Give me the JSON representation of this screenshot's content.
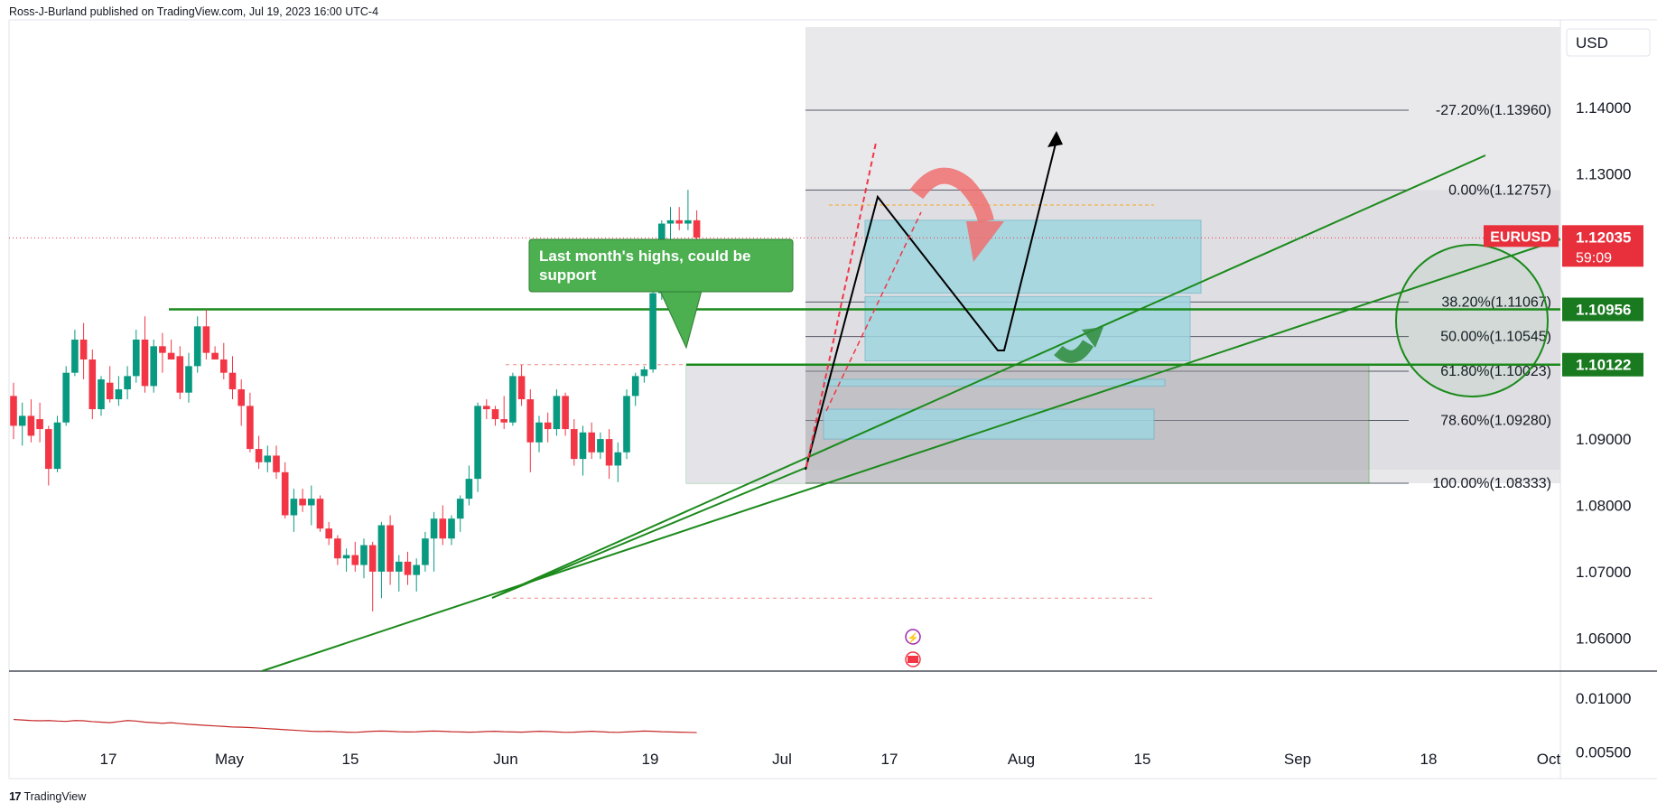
{
  "publisher_line": "Ross-J-Burland published on TradingView.com, Jul 19, 2023 16:00 UTC-4",
  "footer": {
    "logo": "17",
    "brand": "TradingView"
  },
  "currency": "USD",
  "symbol_label": {
    "symbol": "EURUSD",
    "price": "1.12035",
    "countdown": "59:09"
  },
  "colors": {
    "up": "#089981",
    "down": "#f23645",
    "green_line": "#1b8a1b",
    "tag_green": "#197a1f",
    "tag_red": "#e8303c",
    "zone": "#9fd6e0"
  },
  "badges": [
    "1.10956",
    "1.10122"
  ],
  "callout": "Last month's highs, could be support",
  "chart_data": {
    "type": "candlestick",
    "title": "",
    "symbol": "EURUSD",
    "timeframe": "1D",
    "x_tick_labels": [
      "17",
      "May",
      "15",
      "Jun",
      "19",
      "Jul",
      "17",
      "Aug",
      "15",
      "Sep",
      "18",
      "Oct"
    ],
    "price_axis_ticks": [
      "1.14000",
      "1.13000",
      "1.09000",
      "1.08000",
      "1.07000",
      "1.06000"
    ],
    "price_ylim": [
      1.055,
      1.152
    ],
    "current_price": 1.12035,
    "candles": [
      {
        "o": 1.0965,
        "h": 1.0985,
        "l": 1.09,
        "c": 1.092
      },
      {
        "o": 1.092,
        "h": 1.0955,
        "l": 1.089,
        "c": 1.0935
      },
      {
        "o": 1.0935,
        "h": 1.096,
        "l": 1.0895,
        "c": 1.0905
      },
      {
        "o": 1.093,
        "h": 1.0955,
        "l": 1.0895,
        "c": 1.0915
      },
      {
        "o": 1.0915,
        "h": 1.092,
        "l": 1.083,
        "c": 1.0855
      },
      {
        "o": 1.0855,
        "h": 1.0935,
        "l": 1.085,
        "c": 1.0925
      },
      {
        "o": 1.0925,
        "h": 1.101,
        "l": 1.092,
        "c": 1.1
      },
      {
        "o": 1.1,
        "h": 1.1065,
        "l": 1.0995,
        "c": 1.105
      },
      {
        "o": 1.105,
        "h": 1.1075,
        "l": 1.099,
        "c": 1.102
      },
      {
        "o": 1.102,
        "h": 1.1035,
        "l": 1.093,
        "c": 1.0945
      },
      {
        "o": 1.0945,
        "h": 1.0995,
        "l": 1.0935,
        "c": 1.099
      },
      {
        "o": 1.0985,
        "h": 1.101,
        "l": 1.0955,
        "c": 1.096
      },
      {
        "o": 1.096,
        "h": 1.0995,
        "l": 1.095,
        "c": 1.0975
      },
      {
        "o": 1.0975,
        "h": 1.101,
        "l": 1.096,
        "c": 1.0995
      },
      {
        "o": 1.0995,
        "h": 1.1065,
        "l": 1.0985,
        "c": 1.105
      },
      {
        "o": 1.105,
        "h": 1.1085,
        "l": 1.097,
        "c": 1.098
      },
      {
        "o": 1.098,
        "h": 1.105,
        "l": 1.097,
        "c": 1.104
      },
      {
        "o": 1.104,
        "h": 1.106,
        "l": 1.1,
        "c": 1.103
      },
      {
        "o": 1.103,
        "h": 1.105,
        "l": 1.102,
        "c": 1.102
      },
      {
        "o": 1.1025,
        "h": 1.104,
        "l": 1.096,
        "c": 1.097
      },
      {
        "o": 1.097,
        "h": 1.103,
        "l": 1.0955,
        "c": 1.101
      },
      {
        "o": 1.101,
        "h": 1.1085,
        "l": 1.1,
        "c": 1.107
      },
      {
        "o": 1.107,
        "h": 1.1095,
        "l": 1.102,
        "c": 1.103
      },
      {
        "o": 1.103,
        "h": 1.104,
        "l": 1.102,
        "c": 1.102
      },
      {
        "o": 1.102,
        "h": 1.1045,
        "l": 1.099,
        "c": 1.1
      },
      {
        "o": 1.1,
        "h": 1.1025,
        "l": 1.096,
        "c": 1.0975
      },
      {
        "o": 1.0975,
        "h": 1.099,
        "l": 1.092,
        "c": 1.095
      },
      {
        "o": 1.095,
        "h": 1.097,
        "l": 1.088,
        "c": 1.0885
      },
      {
        "o": 1.0885,
        "h": 1.0905,
        "l": 1.0855,
        "c": 1.0865
      },
      {
        "o": 1.0865,
        "h": 1.089,
        "l": 1.085,
        "c": 1.0875
      },
      {
        "o": 1.0875,
        "h": 1.089,
        "l": 1.084,
        "c": 1.085
      },
      {
        "o": 1.085,
        "h": 1.0865,
        "l": 1.078,
        "c": 1.0785
      },
      {
        "o": 1.0785,
        "h": 1.0825,
        "l": 1.076,
        "c": 1.081
      },
      {
        "o": 1.081,
        "h": 1.0825,
        "l": 1.079,
        "c": 1.08
      },
      {
        "o": 1.08,
        "h": 1.083,
        "l": 1.077,
        "c": 1.081
      },
      {
        "o": 1.081,
        "h": 1.0815,
        "l": 1.076,
        "c": 1.0765
      },
      {
        "o": 1.0765,
        "h": 1.0775,
        "l": 1.074,
        "c": 1.075
      },
      {
        "o": 1.075,
        "h": 1.0755,
        "l": 1.071,
        "c": 1.072
      },
      {
        "o": 1.072,
        "h": 1.0735,
        "l": 1.07,
        "c": 1.0725
      },
      {
        "o": 1.0725,
        "h": 1.0745,
        "l": 1.07,
        "c": 1.071
      },
      {
        "o": 1.071,
        "h": 1.075,
        "l": 1.069,
        "c": 1.074
      },
      {
        "o": 1.074,
        "h": 1.0745,
        "l": 1.064,
        "c": 1.07
      },
      {
        "o": 1.07,
        "h": 1.0775,
        "l": 1.066,
        "c": 1.077
      },
      {
        "o": 1.077,
        "h": 1.0785,
        "l": 1.068,
        "c": 1.07
      },
      {
        "o": 1.07,
        "h": 1.0725,
        "l": 1.067,
        "c": 1.0715
      },
      {
        "o": 1.0715,
        "h": 1.073,
        "l": 1.068,
        "c": 1.0695
      },
      {
        "o": 1.0695,
        "h": 1.072,
        "l": 1.067,
        "c": 1.071
      },
      {
        "o": 1.071,
        "h": 1.076,
        "l": 1.07,
        "c": 1.075
      },
      {
        "o": 1.075,
        "h": 1.079,
        "l": 1.07,
        "c": 1.078
      },
      {
        "o": 1.078,
        "h": 1.08,
        "l": 1.074,
        "c": 1.075
      },
      {
        "o": 1.075,
        "h": 1.0785,
        "l": 1.074,
        "c": 1.078
      },
      {
        "o": 1.078,
        "h": 1.0815,
        "l": 1.076,
        "c": 1.081
      },
      {
        "o": 1.081,
        "h": 1.086,
        "l": 1.08,
        "c": 1.084
      },
      {
        "o": 1.084,
        "h": 1.0955,
        "l": 1.082,
        "c": 1.095
      },
      {
        "o": 1.095,
        "h": 1.096,
        "l": 1.093,
        "c": 1.0945
      },
      {
        "o": 1.0945,
        "h": 1.095,
        "l": 1.092,
        "c": 1.093
      },
      {
        "o": 1.093,
        "h": 1.0965,
        "l": 1.0915,
        "c": 1.0925
      },
      {
        "o": 1.0925,
        "h": 1.1,
        "l": 1.092,
        "c": 1.0995
      },
      {
        "o": 1.0995,
        "h": 1.1012,
        "l": 1.095,
        "c": 1.096
      },
      {
        "o": 1.096,
        "h": 1.0975,
        "l": 1.085,
        "c": 1.0895
      },
      {
        "o": 1.0895,
        "h": 1.0935,
        "l": 1.088,
        "c": 1.0925
      },
      {
        "o": 1.0925,
        "h": 1.094,
        "l": 1.0895,
        "c": 1.0915
      },
      {
        "o": 1.0915,
        "h": 1.0975,
        "l": 1.0905,
        "c": 1.0965
      },
      {
        "o": 1.0965,
        "h": 1.097,
        "l": 1.0905,
        "c": 1.0915
      },
      {
        "o": 1.0915,
        "h": 1.093,
        "l": 1.086,
        "c": 1.087
      },
      {
        "o": 1.087,
        "h": 1.092,
        "l": 1.0845,
        "c": 1.091
      },
      {
        "o": 1.091,
        "h": 1.0925,
        "l": 1.087,
        "c": 1.088
      },
      {
        "o": 1.088,
        "h": 1.091,
        "l": 1.087,
        "c": 1.09
      },
      {
        "o": 1.09,
        "h": 1.0915,
        "l": 1.084,
        "c": 1.086
      },
      {
        "o": 1.086,
        "h": 1.0895,
        "l": 1.0835,
        "c": 1.088
      },
      {
        "o": 1.088,
        "h": 1.0975,
        "l": 1.087,
        "c": 1.0965
      },
      {
        "o": 1.0965,
        "h": 1.1,
        "l": 1.095,
        "c": 1.0995
      },
      {
        "o": 1.0995,
        "h": 1.101,
        "l": 1.0985,
        "c": 1.1005
      },
      {
        "o": 1.1005,
        "h": 1.113,
        "l": 1.1,
        "c": 1.112
      },
      {
        "o": 1.112,
        "h": 1.123,
        "l": 1.111,
        "c": 1.1225
      },
      {
        "o": 1.1225,
        "h": 1.125,
        "l": 1.12,
        "c": 1.123
      },
      {
        "o": 1.123,
        "h": 1.125,
        "l": 1.1215,
        "c": 1.1225
      },
      {
        "o": 1.1225,
        "h": 1.1276,
        "l": 1.1215,
        "c": 1.123
      },
      {
        "o": 1.123,
        "h": 1.1245,
        "l": 1.119,
        "c": 1.1204
      }
    ],
    "fibonacci": [
      {
        "ratio": "-27.20%",
        "price": 1.1396,
        "label": "-27.20%(1.13960)"
      },
      {
        "ratio": "0.00%",
        "price": 1.12757,
        "label": "0.00%(1.12757)"
      },
      {
        "ratio": "38.20%",
        "price": 1.11067,
        "label": "38.20%(1.11067)"
      },
      {
        "ratio": "50.00%",
        "price": 1.10545,
        "label": "50.00%(1.10545)"
      },
      {
        "ratio": "61.80%",
        "price": 1.10023,
        "label": "61.80%(1.10023)"
      },
      {
        "ratio": "78.60%",
        "price": 1.0928,
        "label": "78.60%(1.09280)"
      },
      {
        "ratio": "100.00%",
        "price": 1.08333,
        "label": "100.00%(1.08333)"
      }
    ],
    "horizontal_levels": [
      1.10956,
      1.10122
    ],
    "indicator": {
      "axis_ticks": [
        "0.01000",
        "0.00500"
      ],
      "ylim": [
        0.0025,
        0.0125
      ],
      "values": [
        0.008,
        0.00795,
        0.0079,
        0.00788,
        0.0079,
        0.00785,
        0.00782,
        0.0079,
        0.00788,
        0.0078,
        0.00775,
        0.0077,
        0.0078,
        0.0079,
        0.00785,
        0.00775,
        0.0077,
        0.00765,
        0.0077,
        0.00762,
        0.00755,
        0.0075,
        0.00745,
        0.0074,
        0.00735,
        0.0073,
        0.00728,
        0.00725,
        0.0072,
        0.00715,
        0.0071,
        0.00705,
        0.007,
        0.00695,
        0.0069,
        0.00688,
        0.0069,
        0.00685,
        0.00682,
        0.0068,
        0.00685,
        0.0069,
        0.00692,
        0.0069,
        0.00686,
        0.00684,
        0.00685,
        0.0069,
        0.00692,
        0.0069,
        0.00686,
        0.00684,
        0.00682,
        0.00684,
        0.00688,
        0.0069,
        0.00686,
        0.00684,
        0.00682,
        0.00686,
        0.0069,
        0.00688,
        0.00684,
        0.0068,
        0.00682,
        0.00686,
        0.0069,
        0.00686,
        0.00682,
        0.0068,
        0.00684,
        0.00688,
        0.00692,
        0.0069,
        0.00686,
        0.00684,
        0.00682,
        0.0068,
        0.00678
      ]
    }
  }
}
